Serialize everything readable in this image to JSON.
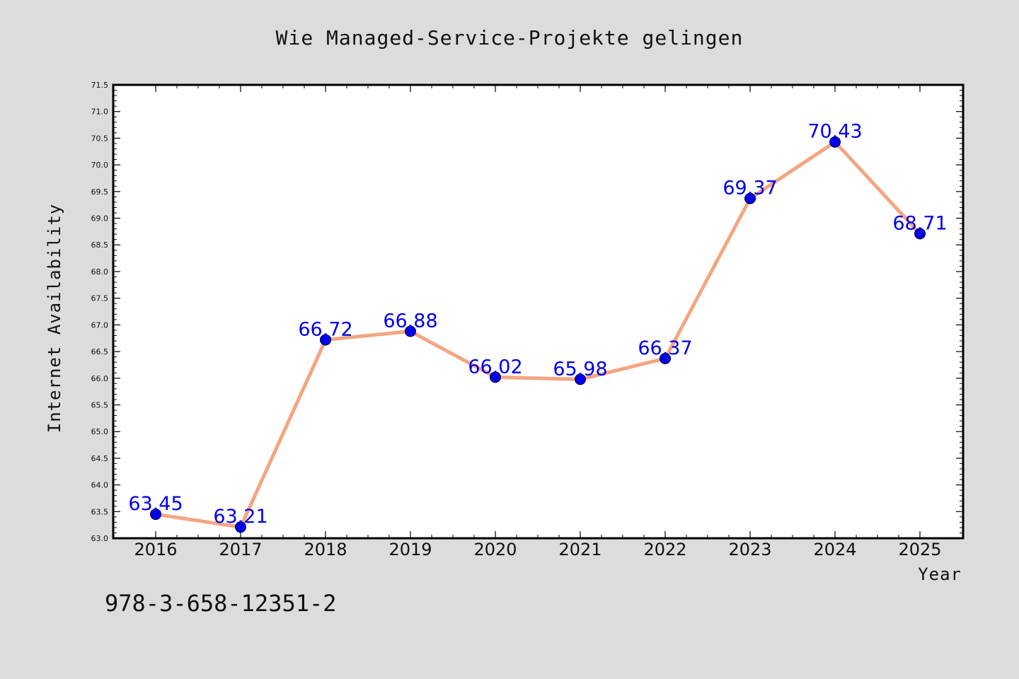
{
  "page": {
    "isbn": "978-3-658-12351-2"
  },
  "chart_data": {
    "type": "line",
    "title": "Wie Managed-Service-Projekte gelingen",
    "xlabel": "Year",
    "ylabel": "Internet Availability",
    "categories": [
      "2016",
      "2017",
      "2018",
      "2019",
      "2020",
      "2021",
      "2022",
      "2023",
      "2024",
      "2025"
    ],
    "series": [
      {
        "values": [
          63.45,
          63.21,
          66.72,
          66.88,
          66.02,
          65.98,
          66.37,
          69.37,
          70.43,
          68.71
        ],
        "data_labels": [
          "63.45",
          "63.21",
          "66.72",
          "66.88",
          "66.02",
          "65.98",
          "66.37",
          "69.37",
          "70.43",
          "68.71"
        ],
        "line_color": "#f4a582",
        "marker_color": "#0000ee"
      }
    ],
    "ylim": [
      63.0,
      71.5
    ],
    "yticks": [
      "63.0",
      "63.5",
      "64.0",
      "64.5",
      "65.0",
      "65.5",
      "66.0",
      "66.5",
      "67.0",
      "67.5",
      "68.0",
      "68.5",
      "69.0",
      "69.5",
      "70.0",
      "70.5",
      "71.0",
      "71.5"
    ],
    "ytick_step": 0.5,
    "grid": false,
    "legend": "none",
    "background_color": "#dcdcdc",
    "plot_background_color": "#ffffff"
  }
}
